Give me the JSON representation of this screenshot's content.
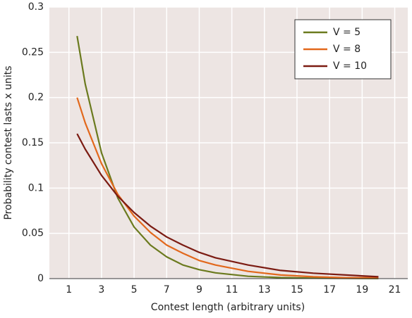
{
  "chart_data": {
    "type": "line",
    "x_label": "Contest length (arbitrary units)",
    "y_label": "Probability contest lasts x units",
    "x": [
      1.5,
      2,
      3,
      4,
      5,
      6,
      7,
      8,
      9,
      10,
      12,
      14,
      16,
      18,
      20
    ],
    "series": [
      {
        "name": "V = 5",
        "color": "#6b7a1e",
        "values": [
          0.268,
          0.215,
          0.139,
          0.089,
          0.057,
          0.037,
          0.024,
          0.015,
          0.0099,
          0.0064,
          0.0026,
          0.0011,
          0.0005,
          0.0002,
          0.0001
        ]
      },
      {
        "name": "V = 8",
        "color": "#e2681c",
        "values": [
          0.2,
          0.172,
          0.127,
          0.093,
          0.069,
          0.051,
          0.037,
          0.028,
          0.02,
          0.015,
          0.008,
          0.004,
          0.002,
          0.001,
          0.001
        ]
      },
      {
        "name": "V = 10",
        "color": "#7b1b12",
        "values": [
          0.16,
          0.143,
          0.114,
          0.091,
          0.073,
          0.058,
          0.046,
          0.037,
          0.029,
          0.023,
          0.015,
          0.009,
          0.006,
          0.004,
          0.002
        ]
      }
    ],
    "xlim": [
      -0.2,
      21.8
    ],
    "xticks": [
      1,
      3,
      5,
      7,
      9,
      11,
      13,
      15,
      17,
      19,
      21
    ],
    "ylim": [
      0,
      0.3
    ],
    "yticks": [
      0,
      0.05,
      0.1,
      0.15,
      0.2,
      0.25,
      0.3
    ],
    "grid": true,
    "legend": "top-right"
  }
}
